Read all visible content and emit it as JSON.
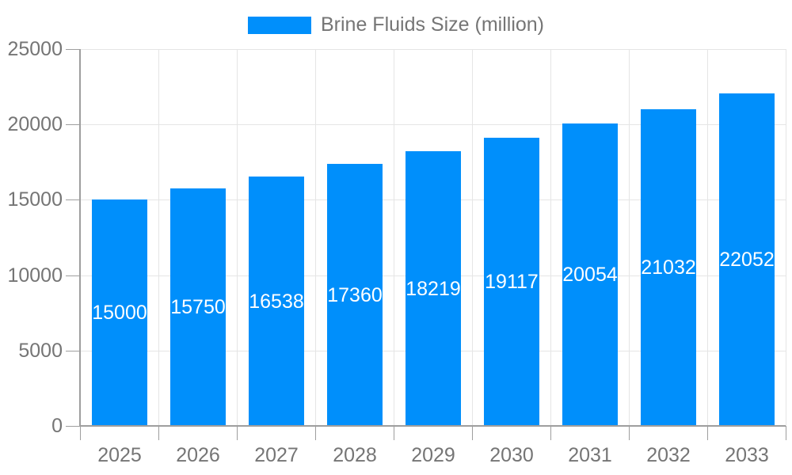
{
  "legend": {
    "label": "Brine Fluids Size (million)"
  },
  "chart_data": {
    "type": "bar",
    "title": "",
    "xlabel": "",
    "ylabel": "",
    "categories": [
      "2025",
      "2026",
      "2027",
      "2028",
      "2029",
      "2030",
      "2031",
      "2032",
      "2033"
    ],
    "series": [
      {
        "name": "Brine Fluids Size (million)",
        "values": [
          15000,
          15750,
          16538,
          17360,
          18219,
          19117,
          20054,
          21032,
          22052
        ]
      }
    ],
    "bar_value_labels": [
      "15000",
      "15750",
      "16538",
      "17360",
      "18219",
      "19117",
      "20054",
      "21032",
      "22052"
    ],
    "ylim": [
      0,
      25000
    ],
    "yticks": [
      0,
      5000,
      10000,
      15000,
      20000,
      25000
    ],
    "ytick_labels": [
      "0",
      "5000",
      "10000",
      "15000",
      "20000",
      "25000"
    ],
    "grid": true,
    "legend_position": "top",
    "colors": {
      "bar": "#008FFB",
      "grid": "#E5E5E5",
      "axis": "#9E9E9E",
      "text": "#757575",
      "bar_label": "#FFFFFF",
      "background": "#FFFFFF"
    }
  }
}
